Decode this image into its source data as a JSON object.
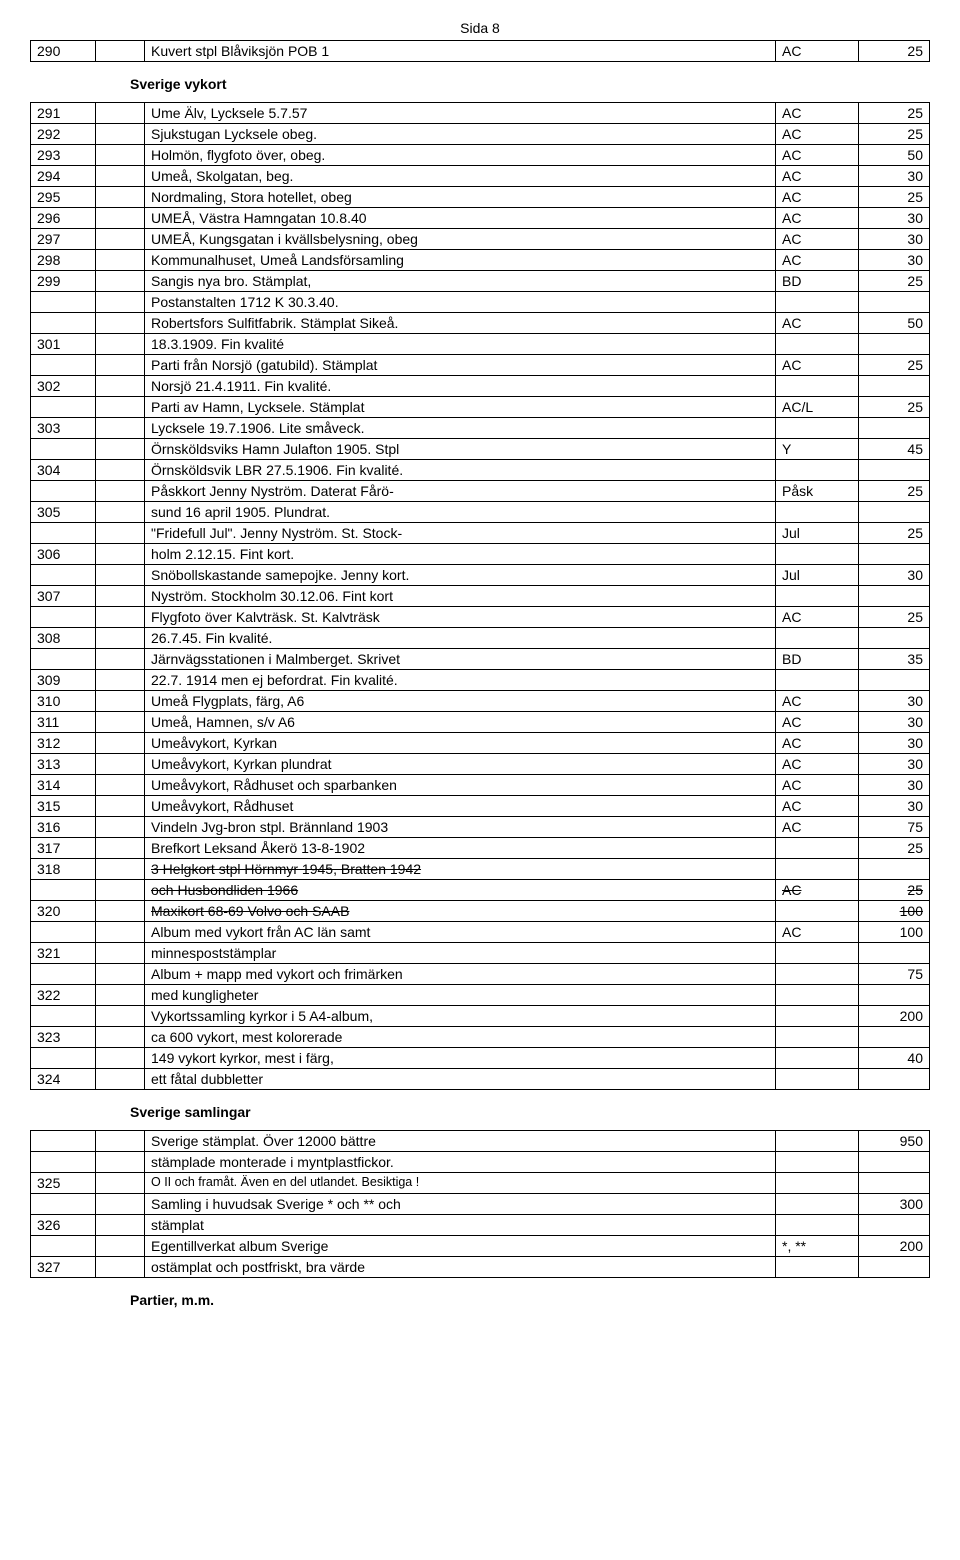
{
  "page_header": "Sida 8",
  "section_titles": {
    "sverige_vykort": "Sverige vykort",
    "sverige_samlingar": "Sverige samlingar",
    "partier": "Partier,  m.m."
  },
  "table_top": {
    "rows": [
      {
        "num": "290",
        "desc": "Kuvert stpl Blåviksjön POB 1",
        "code": "AC",
        "price": "25"
      }
    ]
  },
  "table_vykort": {
    "rows": [
      {
        "num": "291",
        "desc": "Ume Älv, Lycksele 5.7.57",
        "code": "AC",
        "price": "25"
      },
      {
        "num": "292",
        "desc": "Sjukstugan Lycksele obeg.",
        "code": "AC",
        "price": "25"
      },
      {
        "num": "293",
        "desc": "Holmön, flygfoto över, obeg.",
        "code": "AC",
        "price": "50"
      },
      {
        "num": "294",
        "desc": "Umeå, Skolgatan, beg.",
        "code": "AC",
        "price": "30"
      },
      {
        "num": "295",
        "desc": "Nordmaling, Stora hotellet, obeg",
        "code": "AC",
        "price": "25"
      },
      {
        "num": "296",
        "desc": "UMEÅ, Västra Hamngatan 10.8.40",
        "code": "AC",
        "price": "30"
      },
      {
        "num": "297",
        "desc": "UMEÅ, Kungsgatan i kvällsbelysning, obeg",
        "code": "AC",
        "price": "30"
      },
      {
        "num": "298",
        "desc": "Kommunalhuset, Umeå Landsförsamling",
        "code": "AC",
        "price": "30"
      },
      {
        "num": "299",
        "desc": "Sangis nya bro. Stämplat,",
        "code": "BD",
        "price": "25"
      },
      {
        "num": "",
        "desc": "Postanstalten 1712 K 30.3.40.",
        "code": "",
        "price": ""
      },
      {
        "num": "",
        "desc": "Robertsfors Sulfitfabrik. Stämplat Sikeå.",
        "code": "AC",
        "price": "50"
      },
      {
        "num": "301",
        "desc": "18.3.1909. Fin kvalité",
        "code": "",
        "price": ""
      },
      {
        "num": "",
        "desc": "Parti från Norsjö (gatubild). Stämplat",
        "code": "AC",
        "price": "25"
      },
      {
        "num": "302",
        "desc": "Norsjö  21.4.1911.  Fin kvalité.",
        "code": "",
        "price": ""
      },
      {
        "num": "",
        "desc": "Parti av Hamn, Lycksele. Stämplat",
        "code": "AC/L",
        "price": "25"
      },
      {
        "num": "303",
        "desc": "Lycksele 19.7.1906.  Lite småveck.",
        "code": "",
        "price": ""
      },
      {
        "num": "",
        "desc": "Örnsköldsviks Hamn Julafton 1905. Stpl",
        "code": "Y",
        "price": "45"
      },
      {
        "num": "304",
        "desc": "Örnsköldsvik LBR 27.5.1906. Fin kvalité.",
        "code": "",
        "price": ""
      },
      {
        "num": "",
        "desc": "Påskkort Jenny Nyström. Daterat Fårö-",
        "code": "Påsk",
        "price": "25"
      },
      {
        "num": "305",
        "desc": "sund 16 april 1905. Plundrat.",
        "code": "",
        "price": ""
      },
      {
        "num": "",
        "desc": "\"Fridefull Jul\". Jenny Nyström. St. Stock-",
        "code": "Jul",
        "price": "25"
      },
      {
        "num": "306",
        "desc": "holm 2.12.15. Fint kort.",
        "code": "",
        "price": ""
      },
      {
        "num": "",
        "desc": "Snöbollskastande samepojke. Jenny kort.",
        "code": "Jul",
        "price": "30"
      },
      {
        "num": "307",
        "desc": "Nyström. Stockholm 30.12.06. Fint kort",
        "code": "",
        "price": ""
      },
      {
        "num": "",
        "desc": "Flygfoto över Kalvträsk.  St. Kalvträsk",
        "code": "AC",
        "price": "25"
      },
      {
        "num": "308",
        "desc": "26.7.45.  Fin kvalité.",
        "code": "",
        "price": ""
      },
      {
        "num": "",
        "desc": "Järnvägsstationen i Malmberget. Skrivet",
        "code": "BD",
        "price": "35"
      },
      {
        "num": "309",
        "desc": "22.7. 1914  men ej befordrat. Fin kvalité.",
        "code": "",
        "price": ""
      },
      {
        "num": "310",
        "desc": "Umeå Flygplats, färg, A6",
        "code": "AC",
        "price": "30"
      },
      {
        "num": "311",
        "desc": "Umeå, Hamnen, s/v A6",
        "code": "AC",
        "price": "30"
      },
      {
        "num": "312",
        "desc": "Umeåvykort, Kyrkan",
        "code": "AC",
        "price": "30"
      },
      {
        "num": "313",
        "desc": "Umeåvykort, Kyrkan plundrat",
        "code": "AC",
        "price": "30"
      },
      {
        "num": "314",
        "desc": "Umeåvykort, Rådhuset och sparbanken",
        "code": "AC",
        "price": "30"
      },
      {
        "num": "315",
        "desc": "Umeåvykort, Rådhuset",
        "code": "AC",
        "price": "30"
      },
      {
        "num": "316",
        "desc": "Vindeln Jvg-bron stpl. Brännland 1903",
        "code": "AC",
        "price": "75"
      },
      {
        "num": "317",
        "desc": "Brefkort Leksand Åkerö 13-8-1902",
        "code": "",
        "price": "25"
      },
      {
        "num": "318",
        "desc_html": "strike",
        "desc": "3 Helgkort stpl Hörnmyr 1945, Bratten 1942",
        "code": "",
        "price": ""
      },
      {
        "num": "",
        "desc_html": "strike",
        "desc": "och Husbondliden 1966",
        "code": "AC",
        "code_strike": true,
        "price": "25",
        "price_strike": true
      },
      {
        "num": "320",
        "desc_html": "strike",
        "desc": "Maxikort 68-69 Volvo och SAAB",
        "code": "",
        "price": "100",
        "price_strike": true
      },
      {
        "num": "",
        "desc": "Album med vykort från AC län samt",
        "code": "AC",
        "price": "100"
      },
      {
        "num": "321",
        "desc": "minnespoststämplar",
        "code": "",
        "price": ""
      },
      {
        "num": "",
        "desc": "Album + mapp med vykort och frimärken",
        "code": "",
        "price": "75"
      },
      {
        "num": "322",
        "desc": "med kungligheter",
        "code": "",
        "price": ""
      },
      {
        "num": "",
        "desc": "Vykortssamling kyrkor i 5 A4-album,",
        "code": "",
        "price": "200"
      },
      {
        "num": "323",
        "desc": "ca 600 vykort, mest kolorerade",
        "code": "",
        "price": ""
      },
      {
        "num": "",
        "desc": "149 vykort kyrkor, mest i färg,",
        "code": "",
        "price": "40"
      },
      {
        "num": "324",
        "desc": "ett fåtal dubbletter",
        "code": "",
        "price": ""
      }
    ]
  },
  "table_samlingar": {
    "rows": [
      {
        "num": "",
        "desc": "Sverige stämplat. Över 12000 bättre",
        "code": "",
        "price": "950"
      },
      {
        "num": "",
        "desc": " stämplade monterade i myntplastfickor.",
        "code": "",
        "price": ""
      },
      {
        "num": "325",
        "desc_html": "small",
        "desc": "O II  och framåt. Även en del utlandet. Besiktiga !",
        "code": "",
        "price": ""
      },
      {
        "num": "",
        "desc": "Samling i huvudsak Sverige  * och ** och",
        "code": "",
        "price": "300"
      },
      {
        "num": "326",
        "desc": "stämplat",
        "code": "",
        "price": ""
      },
      {
        "num": "",
        "desc": "Egentillverkat album Sverige",
        "code": "*,  **",
        "price": "200"
      },
      {
        "num": "327",
        "desc": "ostämplat och postfriskt, bra värde",
        "code": "",
        "price": ""
      }
    ]
  }
}
